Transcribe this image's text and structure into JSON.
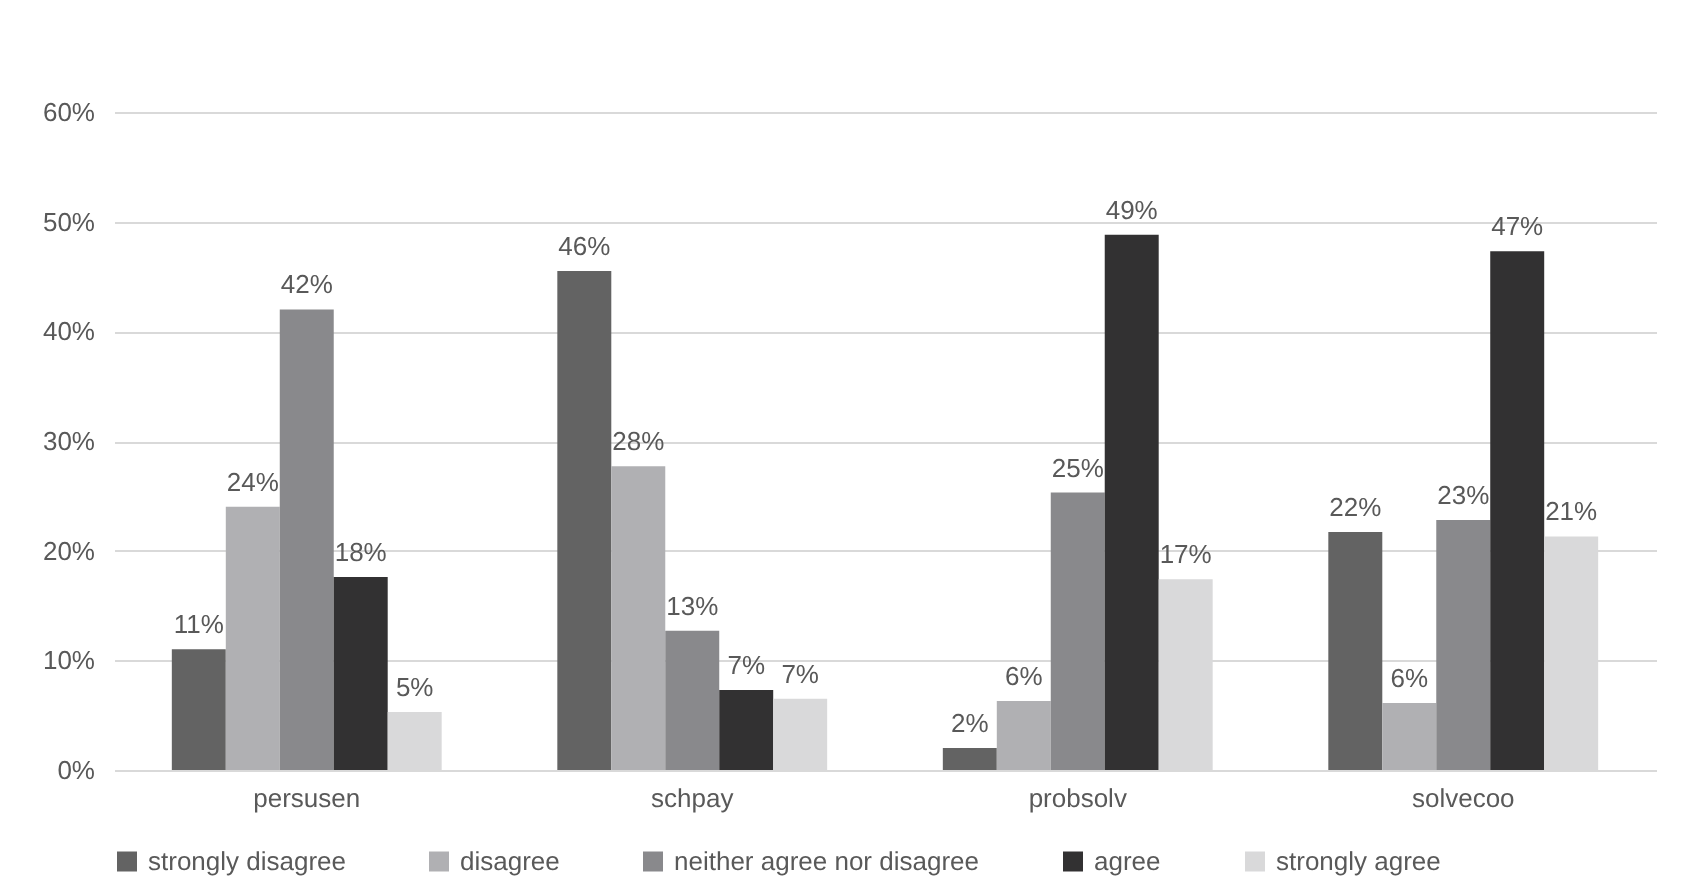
{
  "chart_data": {
    "type": "bar",
    "categories": [
      "persusen",
      "schpay",
      "probsolv",
      "solvecoo"
    ],
    "series": [
      {
        "name": "strongly disagree",
        "color": "#636363",
        "values": [
          11,
          45.5,
          2,
          21.7
        ],
        "value_labels": [
          "11%",
          "46%",
          "2%",
          "22%"
        ]
      },
      {
        "name": "disagree",
        "color": "#b0b0b3",
        "values": [
          24,
          27.7,
          6.3,
          6.1
        ],
        "value_labels": [
          "24%",
          "28%",
          "6%",
          "6%"
        ]
      },
      {
        "name": "neither agree nor disagree",
        "color": "#89898c",
        "values": [
          42,
          12.7,
          25.3,
          22.8
        ],
        "value_labels": [
          "42%",
          "13%",
          "25%",
          "23%"
        ]
      },
      {
        "name": "agree",
        "color": "#323132",
        "values": [
          17.6,
          7.3,
          48.8,
          47.3
        ],
        "value_labels": [
          "18%",
          "7%",
          "49%",
          "47%"
        ]
      },
      {
        "name": "strongly agree",
        "color": "#d9d9da",
        "values": [
          5.3,
          6.5,
          17.4,
          21.3
        ],
        "value_labels": [
          "5%",
          "7%",
          "17%",
          "21%"
        ]
      }
    ],
    "ylim": [
      0,
      60
    ],
    "yticks": [
      {
        "value": 0,
        "label": "0%"
      },
      {
        "value": 10,
        "label": "10%"
      },
      {
        "value": 20,
        "label": "20%"
      },
      {
        "value": 30,
        "label": "30%"
      },
      {
        "value": 40,
        "label": "40%"
      },
      {
        "value": 50,
        "label": "50%"
      },
      {
        "value": 60,
        "label": "60%"
      }
    ],
    "grid": "y",
    "legend": "bottom"
  }
}
